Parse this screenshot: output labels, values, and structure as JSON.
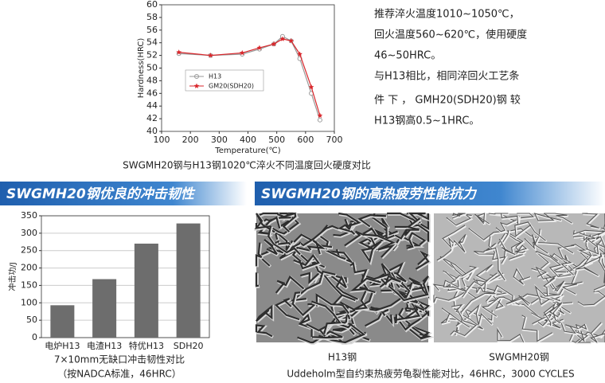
{
  "chart_data": [
    {
      "type": "line",
      "x": [
        160,
        270,
        380,
        440,
        490,
        520,
        550,
        580,
        620,
        650
      ],
      "series": [
        {
          "name": "H13",
          "color": "#999999",
          "values": [
            52.3,
            52.0,
            52.2,
            53.0,
            53.8,
            55.0,
            54.3,
            51.5,
            46.0,
            41.8
          ]
        },
        {
          "name": "GM20(SDH20)",
          "color": "#d9262b",
          "values": [
            52.5,
            52.0,
            52.4,
            53.2,
            53.8,
            54.6,
            54.3,
            52.2,
            47.0,
            42.5
          ]
        }
      ],
      "xlim": [
        100,
        700
      ],
      "xticks": [
        100,
        200,
        300,
        400,
        500,
        600,
        700
      ],
      "ylim": [
        40,
        60
      ],
      "yticks": [
        40,
        42,
        44,
        46,
        48,
        50,
        52,
        54,
        56,
        58,
        60
      ],
      "x_label": "Temperature(℃)",
      "y_label": "Hardness(HRC)",
      "caption": "SWGMH20钢与H13钢1020℃淬火不同温度回火硬度对比"
    },
    {
      "type": "bar",
      "categories": [
        "电炉H13",
        "电渣H13",
        "特优H13",
        "SDH20"
      ],
      "values": [
        93,
        168,
        270,
        328
      ],
      "color": "#6d6d6d",
      "ylim": [
        0,
        350
      ],
      "yticks": [
        0,
        50,
        100,
        150,
        200,
        250,
        300,
        350
      ],
      "y_label": "冲击功/J",
      "caption": [
        "7×10mm无缺口冲击韧性对比",
        "（按NADCA标准，46HRC）"
      ]
    }
  ],
  "notes": [
    "推荐淬火温度1010~1050℃，",
    "回火温度560~620℃，使用硬度",
    "46~50HRC。",
    "与H13相比，相同淬回火工艺条",
    "件 下 ， GMH20(SDH20)钢 较",
    "H13钢高0.5~1HRC。"
  ],
  "sections": [
    "SWGMH20钢优良的冲击韧性",
    "SWGMH20钢的高热疲劳性能抗力"
  ],
  "images": [
    "H13钢",
    "SWGMH20钢"
  ],
  "images_caption": "Uddeholm型自约束热疲劳龟裂性能对比，46HRC，3000 CYCLES"
}
